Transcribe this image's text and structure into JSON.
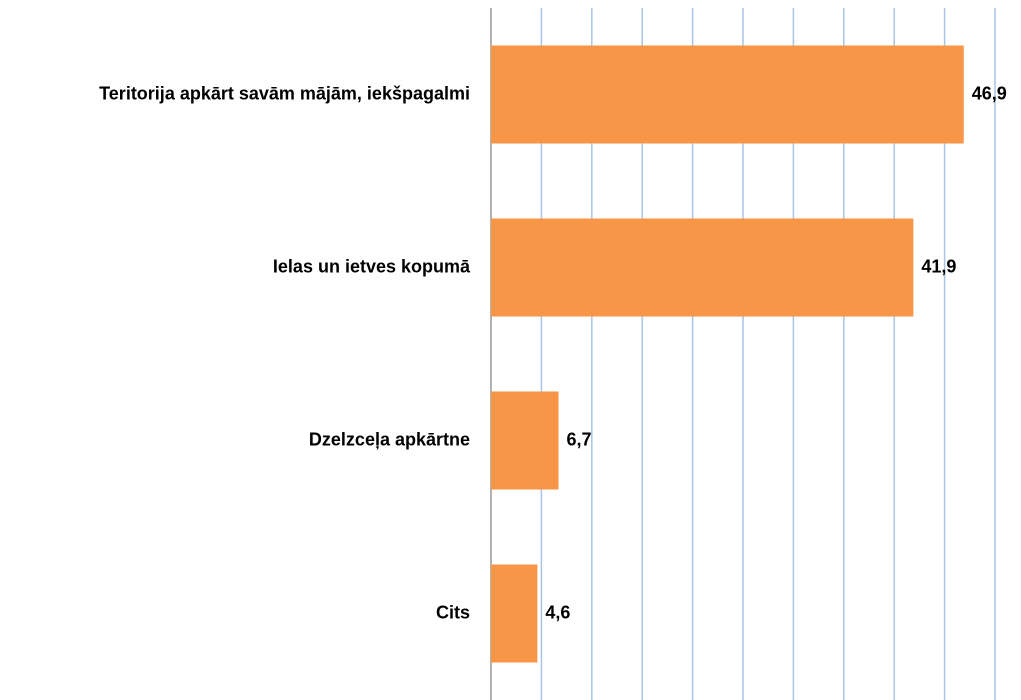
{
  "chart_data": {
    "type": "hbar",
    "categories": [
      "Teritorija apkārt savām mājām, iekšpagalmi",
      "Ielas un ietves kopumā",
      "Dzelzceļa apkārtne",
      "Cits"
    ],
    "values": [
      46.9,
      41.9,
      6.7,
      4.6
    ],
    "value_labels": [
      "46,9",
      "41,9",
      "6,7",
      "4,6"
    ],
    "color": "#f79646",
    "xlim": [
      0,
      50
    ],
    "xticks": [
      0,
      5,
      10,
      15,
      20,
      25,
      30,
      35,
      40,
      45,
      50
    ],
    "grid": true
  }
}
